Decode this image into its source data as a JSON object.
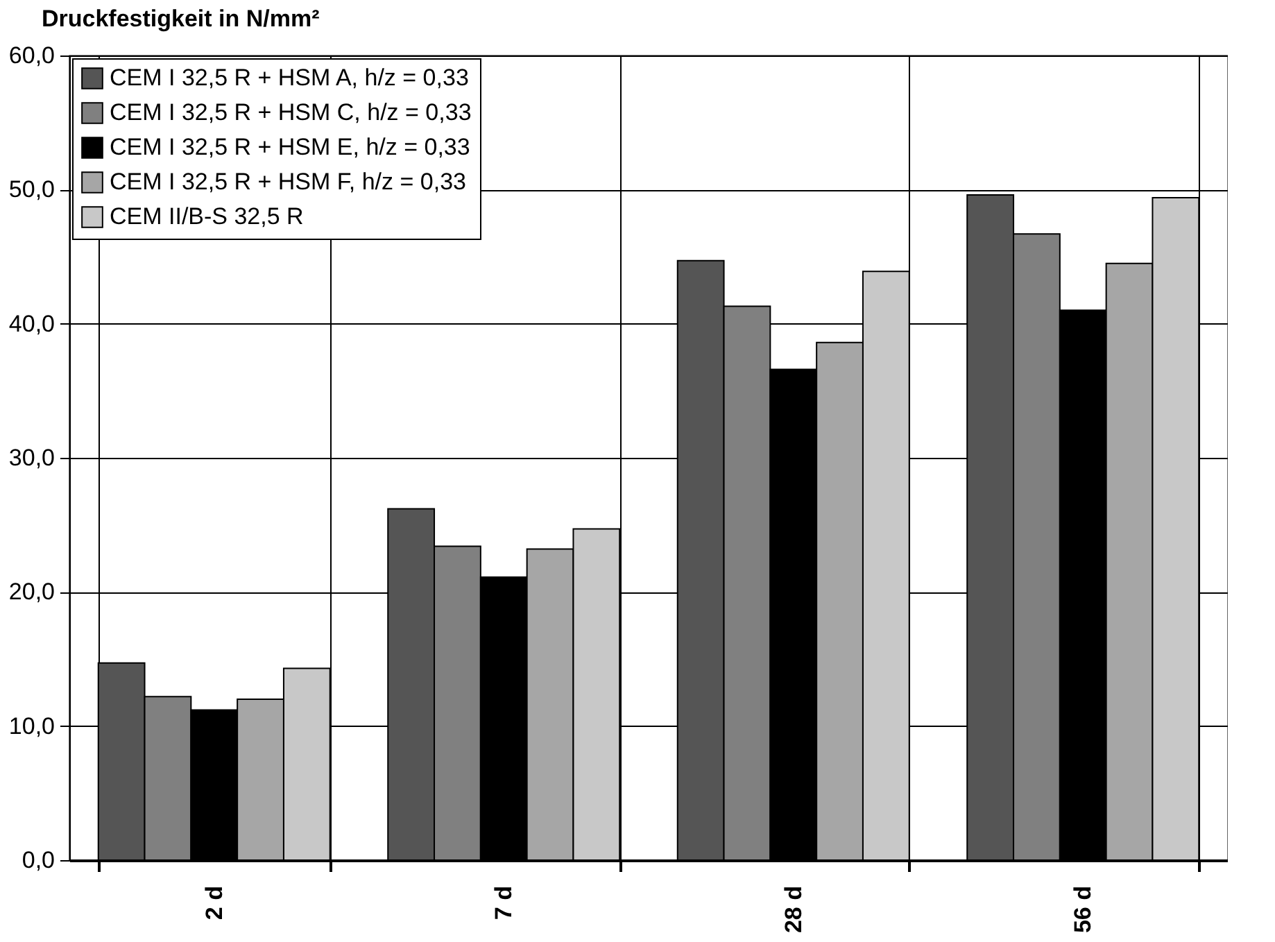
{
  "chart_data": {
    "type": "bar",
    "title": "Druckfestigkeit in N/mm²",
    "categories": [
      "2 d",
      "7 d",
      "28 d",
      "56 d"
    ],
    "series": [
      {
        "name": "CEM I 32,5 R + HSM A, h/z = 0,33",
        "color": "#555555",
        "values": [
          14.7,
          26.2,
          44.7,
          49.6
        ]
      },
      {
        "name": "CEM I 32,5 R + HSM C, h/z = 0,33",
        "color": "#808080",
        "values": [
          12.2,
          23.4,
          41.3,
          46.7
        ]
      },
      {
        "name": "CEM I 32,5 R + HSM E, h/z = 0,33",
        "color": "#000000",
        "values": [
          11.2,
          21.1,
          36.6,
          41.0
        ]
      },
      {
        "name": "CEM I 32,5 R + HSM F, h/z = 0,33",
        "color": "#a6a6a6",
        "values": [
          12.0,
          23.2,
          38.6,
          44.5
        ]
      },
      {
        "name": "CEM II/B-S 32,5 R",
        "color": "#c8c8c8",
        "values": [
          14.3,
          24.7,
          43.9,
          49.4
        ]
      }
    ],
    "ylim": [
      0,
      60
    ],
    "yticks": [
      {
        "value": 0,
        "label": "0,0"
      },
      {
        "value": 10,
        "label": "10,0"
      },
      {
        "value": 20,
        "label": "20,0"
      },
      {
        "value": 30,
        "label": "30,0"
      },
      {
        "value": 40,
        "label": "40,0"
      },
      {
        "value": 50,
        "label": "50,0"
      },
      {
        "value": 60,
        "label": "60,0"
      }
    ],
    "grid": true,
    "legend": "top left"
  }
}
